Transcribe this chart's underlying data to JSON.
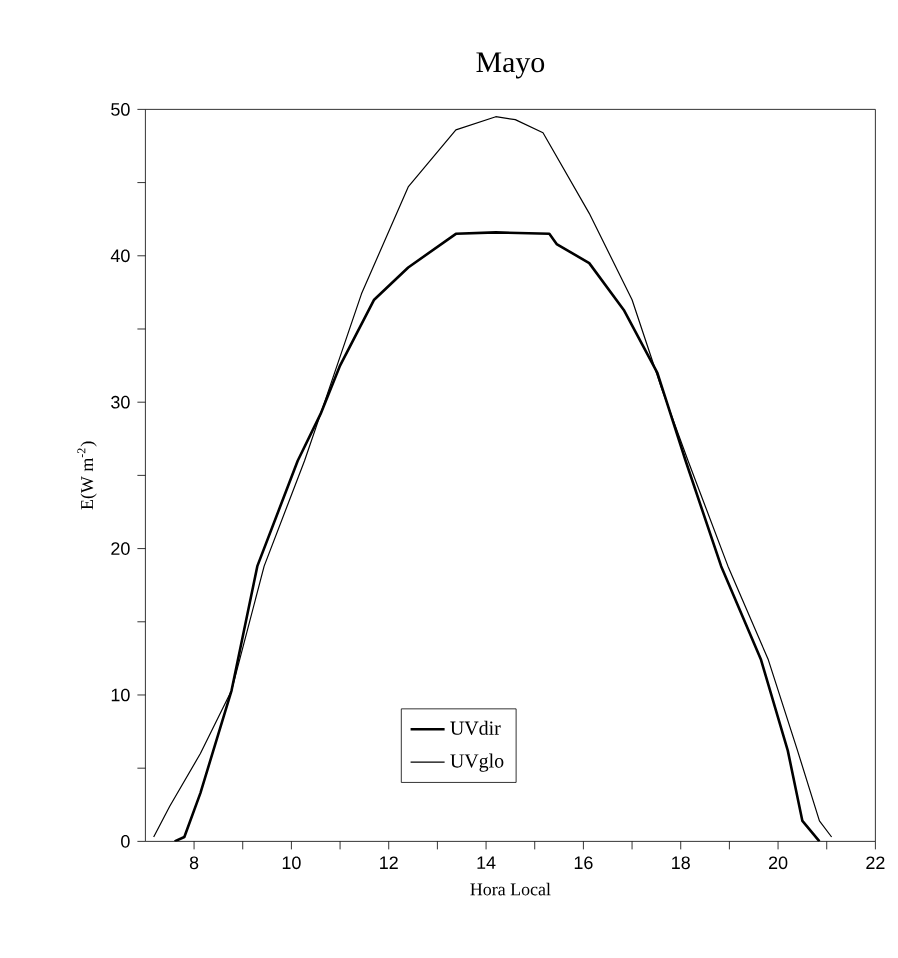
{
  "chart_data": {
    "type": "line",
    "title": "Mayo",
    "xlabel": "Hora Local",
    "ylabel": "E(W m$^{-2}$)",
    "xlim": [
      7,
      22
    ],
    "ylim": [
      0,
      50
    ],
    "xticks": [
      8,
      {
        "value": 9,
        "label": null
      },
      10,
      {
        "value": 11,
        "label": null
      },
      12,
      {
        "value": 13,
        "label": null
      },
      14,
      {
        "value": 15,
        "label": null
      },
      16,
      {
        "value": 17,
        "label": null
      },
      18,
      {
        "value": 19,
        "label": null
      },
      20,
      {
        "value": 21,
        "label": null
      },
      22
    ],
    "yticks": [
      0,
      {
        "value": 5,
        "label": null
      },
      10,
      {
        "value": 15,
        "label": null
      },
      20,
      {
        "value": 25,
        "label": null
      },
      30,
      {
        "value": 35,
        "label": null
      },
      40,
      {
        "value": 45,
        "label": null
      },
      50
    ],
    "tick_labels": "xy",
    "legend": "bottom",
    "grid": false,
    "marker": "none",
    "line_style": "solid",
    "series": [
      {
        "name": "UVdir",
        "color": "#000000",
        "x": [
          7.6,
          7.8,
          8.13,
          8.77,
          9.3,
          10.13,
          10.6,
          11.0,
          11.7,
          12.4,
          13.38,
          14.2,
          15.3,
          15.45,
          16.12,
          16.83,
          17.52,
          18.1,
          18.83,
          19.65,
          20.2,
          20.5,
          20.85
        ],
        "values": [
          0,
          0.3,
          3.3,
          10.3,
          18.8,
          26,
          29.2,
          32.5,
          37,
          39.2,
          41.5,
          41.6,
          41.5,
          40.8,
          39.5,
          36.3,
          32,
          26,
          18.8,
          12.4,
          6.2,
          1.4,
          0
        ]
      },
      {
        "name": "UVglo",
        "color": "#000000",
        "x": [
          7.17,
          7.5,
          8.13,
          8.77,
          9.44,
          10.27,
          10.6,
          11.44,
          12.4,
          13.38,
          14.2,
          14.6,
          15.17,
          16.12,
          17.0,
          17.6,
          18.15,
          18.97,
          19.8,
          20.4,
          20.85,
          21.1
        ],
        "values": [
          0.3,
          2.4,
          6,
          10.3,
          18.8,
          26,
          29.2,
          37.4,
          44.7,
          48.6,
          49.5,
          49.3,
          48.4,
          42.9,
          37,
          31,
          26,
          18.8,
          12.4,
          6.2,
          1.4,
          0.3
        ]
      }
    ]
  }
}
